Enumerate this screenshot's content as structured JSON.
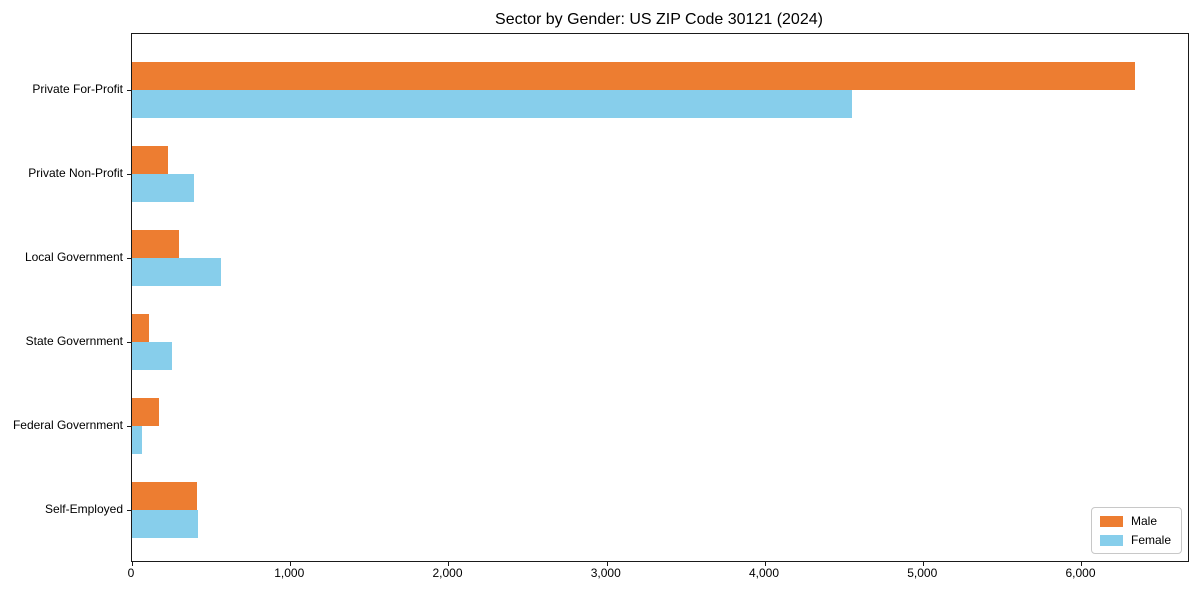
{
  "title": "Sector by Gender: US ZIP Code 30121 (2024)",
  "chart_data": {
    "type": "bar",
    "orientation": "horizontal",
    "title": "Sector by Gender: US ZIP Code 30121 (2024)",
    "xlabel": "",
    "ylabel": "",
    "categories": [
      "Private For-Profit",
      "Private Non-Profit",
      "Local Government",
      "State Government",
      "Federal Government",
      "Self-Employed"
    ],
    "series": [
      {
        "name": "Male",
        "color": "#ed7d31",
        "values": [
          6340,
          230,
          300,
          110,
          170,
          410
        ]
      },
      {
        "name": "Female",
        "color": "#87ceeb",
        "values": [
          4550,
          390,
          565,
          255,
          65,
          420
        ]
      }
    ],
    "xlim": [
      0,
      6673
    ],
    "xticks": [
      0,
      1000,
      2000,
      3000,
      4000,
      5000,
      6000
    ],
    "xtick_labels": [
      "0",
      "1,000",
      "2,000",
      "3,000",
      "4,000",
      "5,000",
      "6,000"
    ],
    "grid": false,
    "legend_position": "lower right",
    "spine_color": "#1a1a1a",
    "background_color": "#ffffff"
  },
  "legend": {
    "male_label": "Male",
    "female_label": "Female"
  }
}
